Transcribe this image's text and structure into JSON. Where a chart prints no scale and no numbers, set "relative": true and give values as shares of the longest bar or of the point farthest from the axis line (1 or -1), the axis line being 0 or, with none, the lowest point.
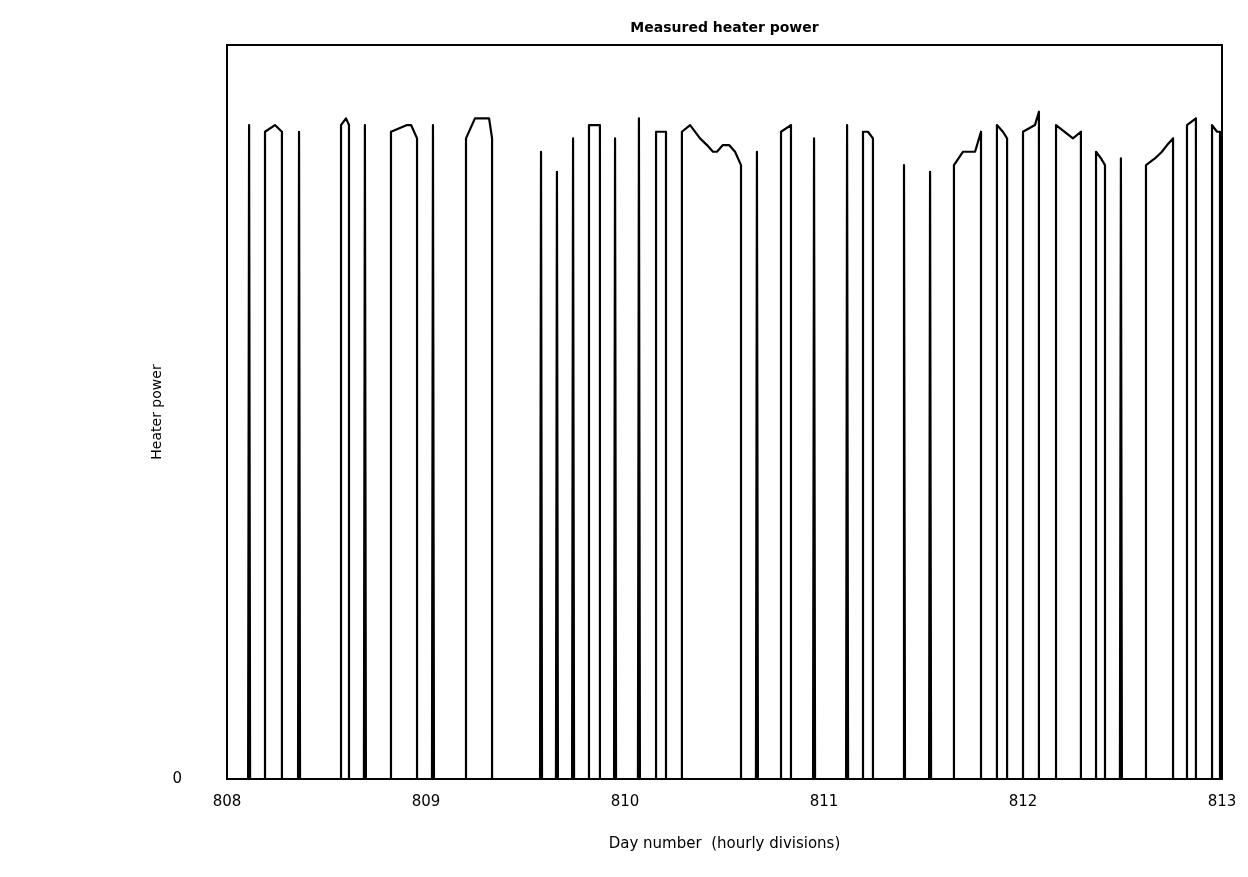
{
  "chart_data": {
    "type": "line",
    "title": "Measured heater power",
    "xlabel": "Day number  (hourly divisions)",
    "ylabel": "Heater power",
    "relative": true,
    "marker": "none",
    "line_style": "solid",
    "grid": false,
    "legend": false,
    "annotations": [
      "0"
    ],
    "xlim": [
      808,
      813
    ],
    "xticks": [
      808,
      809,
      810,
      811,
      812,
      813
    ],
    "series": [
      {
        "color": "#000000",
        "x": [
          808,
          808.106,
          808.111,
          808.116,
          808.191,
          808.191,
          808.241,
          808.276,
          808.276,
          808.357,
          808.362,
          808.367,
          808.573,
          808.573,
          808.598,
          808.613,
          808.613,
          808.688,
          808.693,
          808.698,
          808.824,
          808.824,
          808.905,
          808.925,
          808.955,
          808.955,
          809.03,
          809.035,
          809.04,
          809.201,
          809.201,
          809.246,
          809.286,
          809.317,
          809.332,
          809.332,
          809.573,
          809.578,
          809.583,
          809.653,
          809.658,
          809.663,
          809.734,
          809.739,
          809.744,
          809.819,
          809.819,
          809.874,
          809.874,
          809.945,
          809.95,
          809.955,
          810.065,
          810.07,
          810.075,
          810.156,
          810.156,
          810.206,
          810.206,
          810.286,
          810.286,
          810.327,
          810.377,
          810.412,
          810.442,
          810.462,
          810.492,
          810.523,
          810.553,
          810.583,
          810.583,
          810.658,
          810.663,
          810.668,
          810.784,
          810.784,
          810.834,
          810.834,
          810.945,
          810.95,
          810.955,
          811.111,
          811.116,
          811.121,
          811.196,
          811.196,
          811.221,
          811.246,
          811.246,
          811.397,
          811.402,
          811.407,
          811.528,
          811.533,
          811.538,
          811.653,
          811.653,
          811.698,
          811.759,
          811.789,
          811.789,
          811.869,
          811.869,
          811.899,
          811.92,
          811.92,
          812,
          812,
          812.06,
          812.08,
          812.08,
          812.166,
          812.166,
          812.251,
          812.291,
          812.291,
          812.367,
          812.367,
          812.392,
          812.412,
          812.412,
          812.487,
          812.492,
          812.497,
          812.618,
          812.618,
          812.663,
          812.698,
          812.724,
          812.754,
          812.754,
          812.824,
          812.824,
          812.869,
          812.869,
          812.95,
          812.95,
          812.975,
          812.99,
          812.99,
          813
        ],
        "values": [
          0,
          0,
          0.98,
          0,
          0,
          0.97,
          0.98,
          0.97,
          0,
          0,
          0.97,
          0,
          0,
          0.98,
          0.99,
          0.98,
          0,
          0,
          0.98,
          0,
          0,
          0.97,
          0.98,
          0.98,
          0.96,
          0,
          0,
          0.98,
          0,
          0,
          0.96,
          0.99,
          0.99,
          0.99,
          0.96,
          0,
          0,
          0.94,
          0,
          0,
          0.91,
          0,
          0,
          0.96,
          0,
          0,
          0.98,
          0.98,
          0,
          0,
          0.96,
          0,
          0,
          0.99,
          0,
          0,
          0.97,
          0.97,
          0,
          0,
          0.97,
          0.98,
          0.96,
          0.95,
          0.94,
          0.94,
          0.95,
          0.95,
          0.94,
          0.92,
          0,
          0,
          0.94,
          0,
          0,
          0.97,
          0.98,
          0,
          0,
          0.96,
          0,
          0,
          0.98,
          0,
          0,
          0.97,
          0.97,
          0.96,
          0,
          0,
          0.92,
          0,
          0,
          0.91,
          0,
          0,
          0.92,
          0.94,
          0.94,
          0.97,
          0,
          0,
          0.98,
          0.97,
          0.96,
          0,
          0,
          0.97,
          0.98,
          1,
          0,
          0,
          0.98,
          0.96,
          0.97,
          0,
          0,
          0.94,
          0.93,
          0.92,
          0,
          0,
          0.93,
          0,
          0,
          0.92,
          0.93,
          0.94,
          0.95,
          0.96,
          0,
          0,
          0.98,
          0.99,
          0,
          0,
          0.98,
          0.97,
          0.97,
          0,
          0
        ]
      }
    ]
  }
}
